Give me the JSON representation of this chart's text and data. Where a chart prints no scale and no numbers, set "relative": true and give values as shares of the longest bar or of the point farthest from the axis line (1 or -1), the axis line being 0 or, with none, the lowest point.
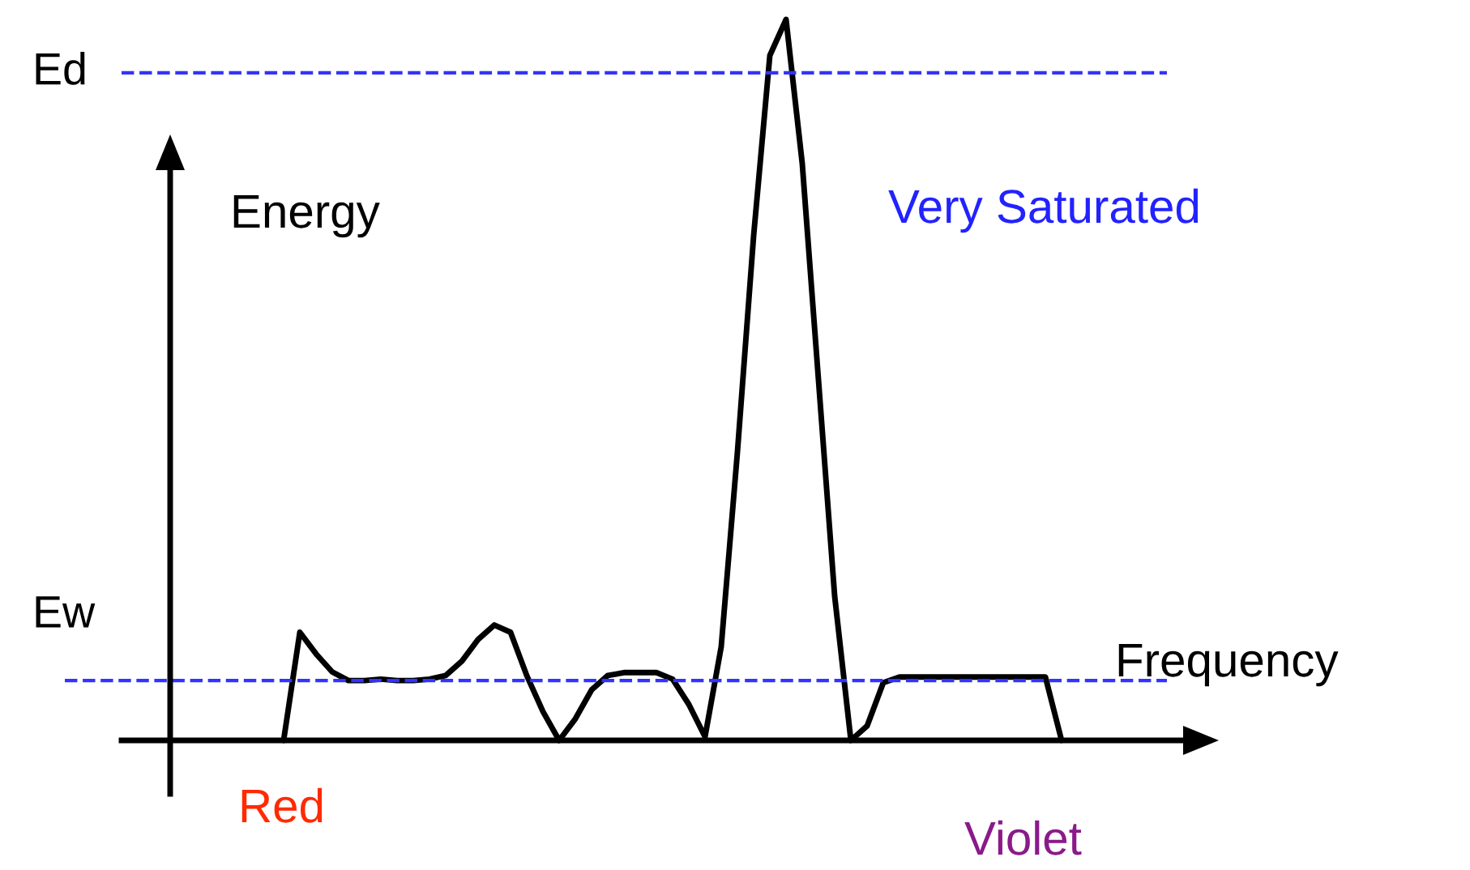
{
  "chart_data": {
    "type": "line",
    "relative": true,
    "categories": [
      null,
      null,
      null,
      null,
      null,
      null,
      null,
      null,
      null,
      null,
      null,
      null,
      null,
      null,
      null,
      null,
      null,
      null,
      null,
      null,
      null,
      null,
      null,
      null,
      null,
      null,
      null,
      null,
      null,
      null,
      null,
      null,
      null,
      null,
      null,
      null,
      null,
      null,
      null,
      null,
      null,
      null,
      null,
      null,
      null,
      null,
      null,
      null,
      null
    ],
    "series": [
      {
        "color": "#000000",
        "values": [
          0,
          0.15,
          0.12,
          0.095,
          0.083,
          0.083,
          0.085,
          0.083,
          0.083,
          0.085,
          0.09,
          0.11,
          0.14,
          0.16,
          0.15,
          0.09,
          0.04,
          0,
          0.03,
          0.07,
          0.09,
          0.094,
          0.094,
          0.094,
          0.085,
          0.05,
          0.005,
          0.13,
          0.4,
          0.7,
          0.95,
          1,
          0.8,
          0.5,
          0.2,
          0,
          0.02,
          0.08,
          0.088,
          0.088,
          0.088,
          0.088,
          0.088,
          0.088,
          0.088,
          0.088,
          0.088,
          0.088,
          0
        ]
      }
    ],
    "ref_lines": [
      {
        "axis": "y",
        "value": 0.926,
        "label": "Ed",
        "color": "#3333ff",
        "line_style": "dashed"
      },
      {
        "axis": "y",
        "value": 0.083,
        "label": "Ew",
        "color": "#3333ff",
        "line_style": "dashed"
      }
    ],
    "annotations": [
      "Energy",
      "Very Saturated",
      "Frequency",
      "Red",
      "Violet"
    ],
    "marker": "none",
    "line_style": "solid"
  }
}
